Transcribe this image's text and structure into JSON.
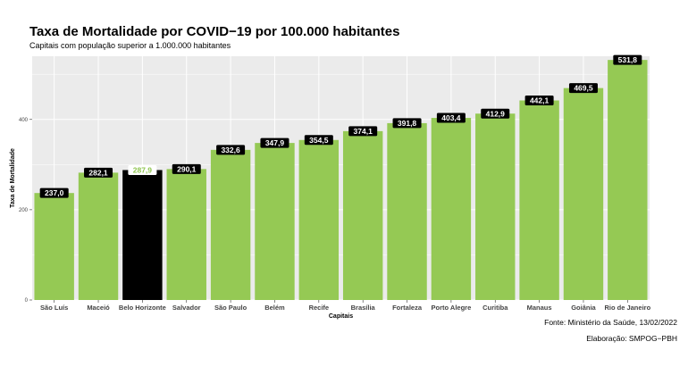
{
  "title": "Taxa de Mortalidade por COVID−19 por 100.000 habitantes",
  "subtitle": "Capitais com população superior a 1.000.000 habitantes",
  "captions": {
    "source": "Fonte: Ministério da Saúde, 13/02/2022",
    "credit": "Elaboração: SMPOG−PBH"
  },
  "colors": {
    "bar": "#95c954",
    "highlight_bar": "#000000",
    "panel": "#ebebeb",
    "grid": "#ffffff",
    "label_box": "#000000"
  },
  "chart_data": {
    "type": "bar",
    "xlabel": "Capitais",
    "ylabel": "Taxa de Mortalidade",
    "ylim": [
      0,
      540
    ],
    "yticks": [
      0,
      200,
      400
    ],
    "grid": true,
    "highlight": "Belo Horizonte",
    "categories": [
      "São Luís",
      "Maceió",
      "Belo Horizonte",
      "Salvador",
      "São Paulo",
      "Belém",
      "Recife",
      "Brasília",
      "Fortaleza",
      "Porto Alegre",
      "Curitiba",
      "Manaus",
      "Goiânia",
      "Rio de Janeiro"
    ],
    "values": [
      237.0,
      282.1,
      287.9,
      290.1,
      332.6,
      347.9,
      354.5,
      374.1,
      391.8,
      403.4,
      412.9,
      442.1,
      469.5,
      531.8
    ],
    "value_labels": [
      "237,0",
      "282,1",
      "287,9",
      "290,1",
      "332,6",
      "347,9",
      "354,5",
      "374,1",
      "391,8",
      "403,4",
      "412,9",
      "442,1",
      "469,5",
      "531,8"
    ]
  }
}
